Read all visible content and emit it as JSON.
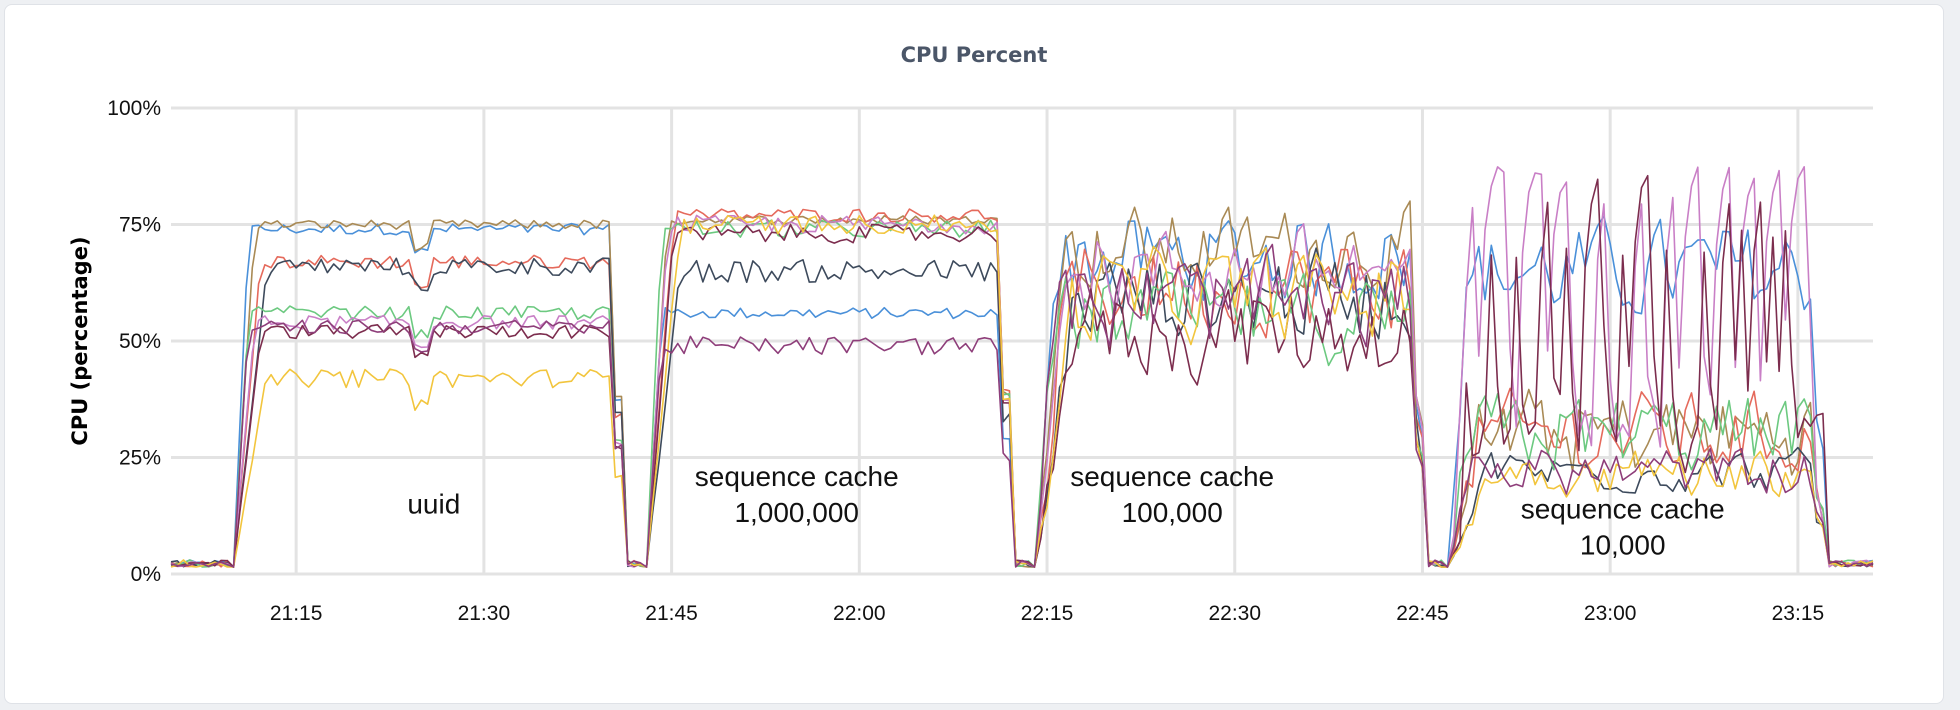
{
  "chart_data": {
    "type": "line",
    "title": "CPU Percent",
    "ylabel": "CPU (percentage)",
    "xlabel": "",
    "ylim": [
      0,
      100
    ],
    "yticks": [
      {
        "value": 0,
        "label": "0%"
      },
      {
        "value": 25,
        "label": "25%"
      },
      {
        "value": 50,
        "label": "50%"
      },
      {
        "value": 75,
        "label": "75%"
      },
      {
        "value": 100,
        "label": "100%"
      }
    ],
    "xlim": [
      "21:05",
      "23:21"
    ],
    "xticks": [
      "21:15",
      "21:30",
      "21:45",
      "22:00",
      "22:15",
      "22:30",
      "22:45",
      "23:00",
      "23:15"
    ],
    "grid": true,
    "legend": "none",
    "annotations": [
      {
        "lines": [
          "uuid"
        ],
        "x": "21:26",
        "y": 13
      },
      {
        "lines": [
          "sequence cache",
          "1,000,000"
        ],
        "x": "21:55",
        "y": 15
      },
      {
        "lines": [
          "sequence cache",
          "100,000"
        ],
        "x": "22:25",
        "y": 15
      },
      {
        "lines": [
          "sequence cache",
          "10,000"
        ],
        "x": "23:01",
        "y": 8
      }
    ],
    "phase_boundaries": [
      "21:10",
      "21:41",
      "21:43",
      "22:12",
      "22:14",
      "22:45",
      "22:47",
      "23:17"
    ],
    "phases": [
      {
        "name": "uuid",
        "start": "21:10",
        "end": "21:41"
      },
      {
        "name": "sequence cache 1,000,000",
        "start": "21:43",
        "end": "22:12"
      },
      {
        "name": "sequence cache 100,000",
        "start": "22:14",
        "end": "22:45"
      },
      {
        "name": "sequence cache 10,000",
        "start": "22:47",
        "end": "23:17"
      }
    ],
    "baseline": 1.5,
    "series": [
      {
        "color": "#4a90d9",
        "levels": [
          74,
          56,
          68,
          65
        ],
        "noise": [
          1.2,
          1.2,
          13,
          14
        ]
      },
      {
        "color": "#a98a55",
        "levels": [
          75,
          76,
          70,
          30
        ],
        "noise": [
          1.0,
          1.0,
          12,
          13
        ]
      },
      {
        "color": "#e56a5c",
        "levels": [
          67,
          77,
          62,
          30
        ],
        "noise": [
          1.5,
          1.5,
          14,
          12
        ]
      },
      {
        "color": "#3d4a5c",
        "levels": [
          66,
          65,
          60,
          22
        ],
        "noise": [
          2.0,
          2.5,
          13,
          6
        ]
      },
      {
        "color": "#6cc980",
        "levels": [
          56,
          74,
          55,
          30
        ],
        "noise": [
          1.5,
          2.0,
          13,
          12
        ]
      },
      {
        "color": "#c97fc6",
        "levels": [
          54,
          75,
          65,
          45
        ],
        "noise": [
          1.5,
          2.0,
          13,
          40
        ]
      },
      {
        "color": "#7c2d4e",
        "levels": [
          52,
          73,
          52,
          65
        ],
        "noise": [
          1.5,
          2.0,
          14,
          40
        ]
      },
      {
        "color": "#f2c53d",
        "levels": [
          42,
          75,
          60,
          22
        ],
        "noise": [
          2.0,
          2.0,
          13,
          7
        ]
      },
      {
        "color": "#8e3e7a",
        "levels": [
          53,
          49,
          58,
          22
        ],
        "noise": [
          1.5,
          2.0,
          14,
          7
        ]
      }
    ]
  }
}
